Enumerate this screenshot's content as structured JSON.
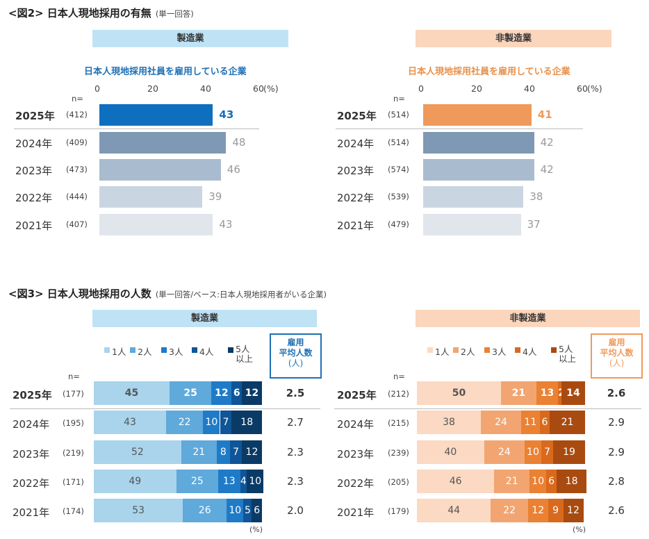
{
  "fig2": {
    "title": "<図2> 日本人現地採用の有無",
    "note": "(単一回答)"
  },
  "fig3": {
    "title": "<図3> 日本人現地採用の人数",
    "note": "(単一回答/ベース:日本人現地採用者がいる企業)"
  },
  "colors": {
    "mfg_band": "#bfe3f5",
    "nonmfg_band": "#fbd5bc",
    "mfg_subtitle": "#1f6fb5",
    "nonmfg_subtitle": "#e8904a"
  },
  "chart_data": [
    {
      "type": "bar",
      "orientation": "horizontal",
      "panel": "製造業",
      "subtitle": "日本人現地採用社員を雇用している企業",
      "n_label": "n=",
      "ticks": [
        "0",
        "20",
        "40",
        "60"
      ],
      "unit": "(%)",
      "xlim": [
        0,
        60
      ],
      "categories": [
        "2025年",
        "2024年",
        "2023年",
        "2022年",
        "2021年"
      ],
      "n": [
        "(412)",
        "(409)",
        "(473)",
        "(444)",
        "(407)"
      ],
      "values": [
        43,
        48,
        46,
        39,
        43
      ],
      "bar_colors": [
        "#0f6fbf",
        "#7f98b3",
        "#a9bccf",
        "#c9d6e2",
        "#e1e6ec"
      ],
      "label_colors": [
        "#0f6fbf",
        "#999999",
        "#999999",
        "#999999",
        "#999999"
      ]
    },
    {
      "type": "bar",
      "orientation": "horizontal",
      "panel": "非製造業",
      "subtitle": "日本人現地採用社員を雇用している企業",
      "n_label": "n=",
      "ticks": [
        "0",
        "20",
        "40",
        "60"
      ],
      "unit": "(%)",
      "xlim": [
        0,
        60
      ],
      "categories": [
        "2025年",
        "2024年",
        "2023年",
        "2022年",
        "2021年"
      ],
      "n": [
        "(514)",
        "(514)",
        "(574)",
        "(539)",
        "(479)"
      ],
      "values": [
        41,
        42,
        42,
        38,
        37
      ],
      "bar_colors": [
        "#ef9a5a",
        "#7f98b3",
        "#a9bccf",
        "#c9d6e2",
        "#e1e6ec"
      ],
      "label_colors": [
        "#ef9a5a",
        "#999999",
        "#999999",
        "#999999",
        "#999999"
      ]
    },
    {
      "type": "bar",
      "orientation": "horizontal",
      "stacked": true,
      "panel": "製造業",
      "n_label": "n=",
      "unit": "(%)",
      "legend": [
        "1人",
        "2人",
        "3人",
        "4人",
        "5人 以上"
      ],
      "avg_header": [
        "雇用",
        "平均人数",
        "(人)"
      ],
      "categories": [
        "2025年",
        "2024年",
        "2023年",
        "2022年",
        "2021年"
      ],
      "n": [
        "(177)",
        "(195)",
        "(219)",
        "(171)",
        "(174)"
      ],
      "series_colors": [
        "#a9d4ec",
        "#5fa9db",
        "#1f7bc8",
        "#0f5597",
        "#0a3a66"
      ],
      "text_colors": [
        "#555555",
        "#ffffff",
        "#ffffff",
        "#ffffff",
        "#ffffff"
      ],
      "values": [
        [
          45,
          25,
          12,
          6,
          12
        ],
        [
          43,
          22,
          10,
          7,
          18
        ],
        [
          52,
          21,
          8,
          7,
          12
        ],
        [
          49,
          25,
          13,
          4,
          10
        ],
        [
          53,
          26,
          10,
          5,
          6
        ]
      ],
      "avg": [
        "2.5",
        "2.7",
        "2.3",
        "2.3",
        "2.0"
      ]
    },
    {
      "type": "bar",
      "orientation": "horizontal",
      "stacked": true,
      "panel": "非製造業",
      "n_label": "n=",
      "unit": "(%)",
      "legend": [
        "1人",
        "2人",
        "3人",
        "4人",
        "5人 以上"
      ],
      "avg_header": [
        "雇用",
        "平均人数",
        "(人)"
      ],
      "categories": [
        "2025年",
        "2024年",
        "2023年",
        "2022年",
        "2021年"
      ],
      "n": [
        "(212)",
        "(215)",
        "(239)",
        "(205)",
        "(179)"
      ],
      "series_colors": [
        "#fbd9c2",
        "#f2a571",
        "#ea8133",
        "#d96a1d",
        "#a94b10"
      ],
      "text_colors": [
        "#555555",
        "#ffffff",
        "#ffffff",
        "#ffffff",
        "#ffffff"
      ],
      "values": [
        [
          50,
          21,
          13,
          2,
          14
        ],
        [
          38,
          24,
          11,
          6,
          21
        ],
        [
          40,
          24,
          10,
          7,
          19
        ],
        [
          46,
          21,
          10,
          6,
          18
        ],
        [
          44,
          22,
          12,
          9,
          12
        ]
      ],
      "avg": [
        "2.6",
        "2.9",
        "2.9",
        "2.8",
        "2.6"
      ]
    }
  ]
}
